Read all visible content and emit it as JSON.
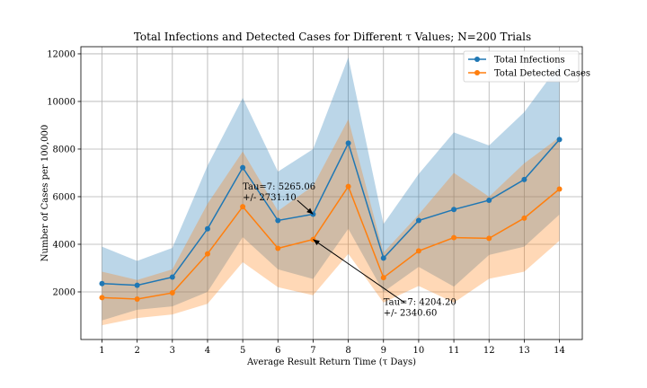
{
  "chart_data": {
    "type": "line",
    "title": "Total Infections and Detected Cases for Different τ Values; N=200 Trials",
    "xlabel": "Average Result Return Time (τ Days)",
    "ylabel": "Number of Cases per 100,000",
    "x": [
      1,
      2,
      3,
      4,
      5,
      6,
      7,
      8,
      9,
      10,
      11,
      12,
      13,
      14
    ],
    "xlim": [
      0.4,
      14.65
    ],
    "ylim": [
      0,
      12300
    ],
    "yticks": [
      2000,
      4000,
      6000,
      8000,
      10000,
      12000
    ],
    "ytick_labels": [
      "2000",
      "4000",
      "6000",
      "8000",
      "10000",
      "12000"
    ],
    "grid": true,
    "legend_position": "top-right",
    "series": [
      {
        "name": "Total Infections",
        "color": "#1f77b4",
        "band_color": "#1f77b4",
        "values": [
          2350,
          2280,
          2620,
          4650,
          7220,
          5000,
          5265.06,
          8250,
          3420,
          5000,
          5460,
          5850,
          6720,
          8400
        ],
        "upper": [
          3900,
          3300,
          3850,
          7300,
          10150,
          7050,
          8000,
          11850,
          4850,
          6950,
          8700,
          8150,
          9550,
          11550
        ],
        "lower": [
          800,
          1250,
          1390,
          2000,
          4300,
          2950,
          2540,
          4650,
          2000,
          3050,
          2220,
          3550,
          3900,
          5250
        ]
      },
      {
        "name": "Total Detected Cases",
        "color": "#ff7f0e",
        "band_color": "#ff7f0e",
        "values": [
          1760,
          1700,
          1960,
          3600,
          5580,
          3830,
          4204.2,
          6430,
          2600,
          3720,
          4280,
          4250,
          5100,
          6320
        ],
        "upper": [
          2850,
          2500,
          2950,
          5700,
          7900,
          5400,
          6450,
          9250,
          3650,
          5250,
          7000,
          6000,
          7400,
          8500
        ],
        "lower": [
          600,
          900,
          1050,
          1500,
          3250,
          2200,
          1860,
          3600,
          1550,
          2250,
          1550,
          2550,
          2850,
          4150
        ]
      }
    ],
    "annotations": [
      {
        "line1": "Tau=7: 5265.06",
        "line2": "+/- 2731.10",
        "text_x": 5.0,
        "text_y": 6300,
        "arrow_from_x": 6.55,
        "arrow_from_y": 5850,
        "arrow_to_x": 7.0,
        "arrow_to_y": 5265.06
      },
      {
        "line1": "Tau=7: 4204.20",
        "line2": "+/- 2340.60",
        "text_x": 9.0,
        "text_y": 1450,
        "arrow_from_x": 9.6,
        "arrow_from_y": 1550,
        "arrow_to_x": 7.0,
        "arrow_to_y": 4204.2
      }
    ]
  }
}
